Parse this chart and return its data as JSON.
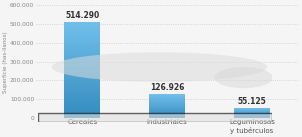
{
  "categories": [
    "Cereales",
    "Industriales",
    "Leguminosas\ny tubérculos"
  ],
  "values": [
    514290,
    126926,
    55125
  ],
  "bar_labels": [
    "514.290",
    "126.926",
    "55.125"
  ],
  "bar_colors": [
    "#4ab5e0",
    "#4ab5e0",
    "#4ab5e0"
  ],
  "ylabel": "Superficie (has-llanos)",
  "ylim": [
    0,
    600000
  ],
  "yticks": [
    0,
    100000,
    200000,
    300000,
    400000,
    500000,
    600000
  ],
  "ytick_labels": [
    "0",
    "100.000",
    "200.000",
    "300.000",
    "400.000",
    "500.000",
    "600.000"
  ],
  "fig_bg_color": "#f5f5f5",
  "plot_bg_color": "#f5f5f5",
  "grid_color": "#cccccc",
  "tick_fontsize": 4.2,
  "ylabel_fontsize": 4.0,
  "xlabel_fontsize": 5.0,
  "bar_label_fontsize": 5.5,
  "bar_width": 0.42
}
